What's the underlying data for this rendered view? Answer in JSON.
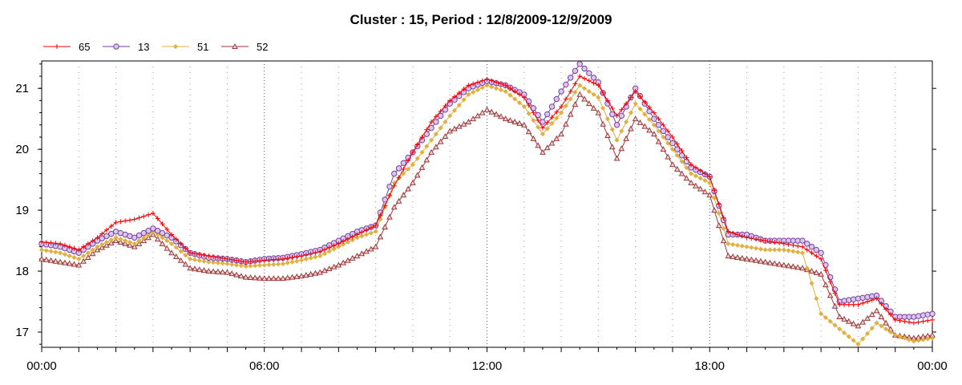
{
  "chart_data": {
    "type": "line",
    "title": "Cluster : 15, Period : 12/8/2009-12/9/2009",
    "xlabel": "",
    "ylabel": "",
    "x_tick_labels": [
      "00:00",
      "06:00",
      "12:00",
      "18:00",
      "00:00"
    ],
    "x_tick_hours": [
      0,
      6,
      12,
      18,
      24
    ],
    "y_ticks": [
      17,
      18,
      19,
      20,
      21
    ],
    "xlim_hours": [
      0,
      24
    ],
    "ylim": [
      16.75,
      21.45
    ],
    "grid": "dotted vertical lines",
    "legend_position": "top-left",
    "x_hours": [
      0,
      0.5,
      1,
      1.5,
      2,
      2.5,
      3,
      3.5,
      4,
      4.5,
      5,
      5.5,
      6,
      6.5,
      7,
      7.5,
      8,
      8.5,
      9,
      9.5,
      10,
      10.5,
      11,
      11.5,
      12,
      12.5,
      13,
      13.5,
      14,
      14.5,
      15,
      15.5,
      16,
      16.5,
      17,
      17.5,
      18,
      18.5,
      19,
      19.5,
      20,
      20.5,
      21,
      21.5,
      22,
      22.5,
      23,
      23.5,
      24
    ],
    "series": [
      {
        "name": "65",
        "color": "#ff0000",
        "marker": "plus",
        "values": [
          18.48,
          18.45,
          18.35,
          18.55,
          18.8,
          18.85,
          18.95,
          18.6,
          18.3,
          18.25,
          18.2,
          18.15,
          18.18,
          18.2,
          18.25,
          18.32,
          18.45,
          18.6,
          18.75,
          19.4,
          19.95,
          20.45,
          20.8,
          21.05,
          21.15,
          21.05,
          20.85,
          20.35,
          20.7,
          21.2,
          21.05,
          20.55,
          20.95,
          20.6,
          20.2,
          19.75,
          19.55,
          18.65,
          18.55,
          18.5,
          18.45,
          18.4,
          18.2,
          17.45,
          17.45,
          17.55,
          17.2,
          17.15,
          17.2
        ]
      },
      {
        "name": "13",
        "color": "#7b3f9e",
        "marker": "circle",
        "values": [
          18.45,
          18.4,
          18.3,
          18.5,
          18.65,
          18.55,
          18.7,
          18.55,
          18.3,
          18.22,
          18.2,
          18.15,
          18.2,
          18.22,
          18.28,
          18.35,
          18.5,
          18.65,
          18.75,
          19.6,
          19.95,
          20.35,
          20.75,
          21.0,
          21.12,
          21.05,
          20.9,
          20.45,
          20.95,
          21.4,
          21.1,
          20.4,
          21.0,
          20.5,
          20.1,
          19.7,
          19.55,
          18.6,
          18.6,
          18.5,
          18.5,
          18.5,
          18.3,
          17.5,
          17.55,
          17.6,
          17.25,
          17.25,
          17.3
        ]
      },
      {
        "name": "51",
        "color": "#e0b040",
        "marker": "diamond",
        "values": [
          18.35,
          18.3,
          18.2,
          18.4,
          18.55,
          18.45,
          18.65,
          18.45,
          18.2,
          18.15,
          18.12,
          18.08,
          18.1,
          18.12,
          18.18,
          18.25,
          18.4,
          18.55,
          18.65,
          19.45,
          19.75,
          20.15,
          20.55,
          20.9,
          21.05,
          20.95,
          20.7,
          20.25,
          20.6,
          21.05,
          20.85,
          20.15,
          20.75,
          20.4,
          20.0,
          19.6,
          19.45,
          18.45,
          18.4,
          18.35,
          18.35,
          18.3,
          17.3,
          17.05,
          16.8,
          17.15,
          16.95,
          16.85,
          16.9
        ]
      },
      {
        "name": "52",
        "color": "#9b3a3a",
        "marker": "triangle",
        "values": [
          18.2,
          18.15,
          18.1,
          18.35,
          18.5,
          18.4,
          18.6,
          18.3,
          18.05,
          18.0,
          17.98,
          17.9,
          17.88,
          17.88,
          17.92,
          17.98,
          18.1,
          18.25,
          18.4,
          19.05,
          19.45,
          19.95,
          20.3,
          20.45,
          20.65,
          20.5,
          20.4,
          19.95,
          20.25,
          20.9,
          20.6,
          19.85,
          20.5,
          20.25,
          19.75,
          19.45,
          19.25,
          18.25,
          18.2,
          18.15,
          18.1,
          18.05,
          17.95,
          17.25,
          17.1,
          17.35,
          16.95,
          16.9,
          16.95
        ]
      }
    ]
  }
}
